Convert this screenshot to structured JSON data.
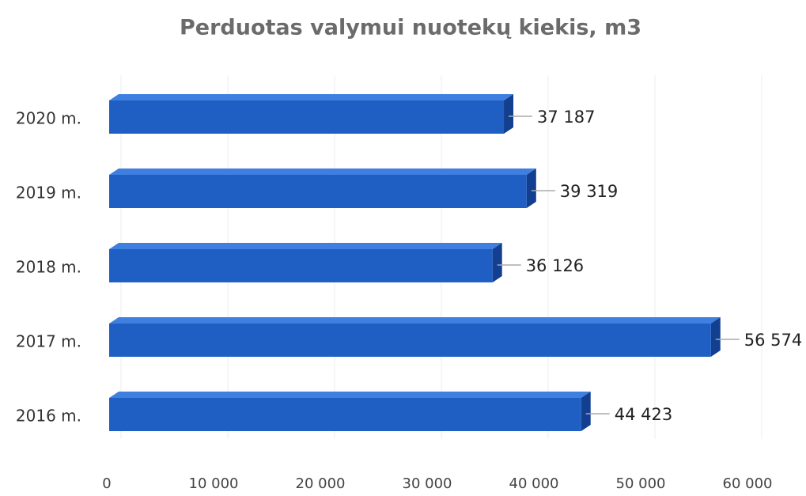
{
  "chart_data": {
    "type": "hbar",
    "title": "Perduotas valymui nuotekų kiekis, m3",
    "categories": [
      "2020 m.",
      "2019 m.",
      "2018 m.",
      "2017 m.",
      "2016 m."
    ],
    "values": [
      37187,
      39319,
      36126,
      56574,
      44423
    ],
    "value_labels": [
      "37 187",
      "39 319",
      "36 126",
      "56 574",
      "44 423"
    ],
    "color": "#1f5fc4",
    "xlim": [
      0,
      60000
    ],
    "xticks": [
      0,
      {
        "value": 10000,
        "label": "10 000"
      },
      {
        "value": 20000,
        "label": "20 000"
      },
      {
        "value": 30000,
        "label": "30 000"
      },
      {
        "value": 40000,
        "label": "40 000"
      },
      {
        "value": 50000,
        "label": "50 000"
      },
      {
        "value": 60000,
        "label": "60 000"
      }
    ],
    "grid": true
  }
}
